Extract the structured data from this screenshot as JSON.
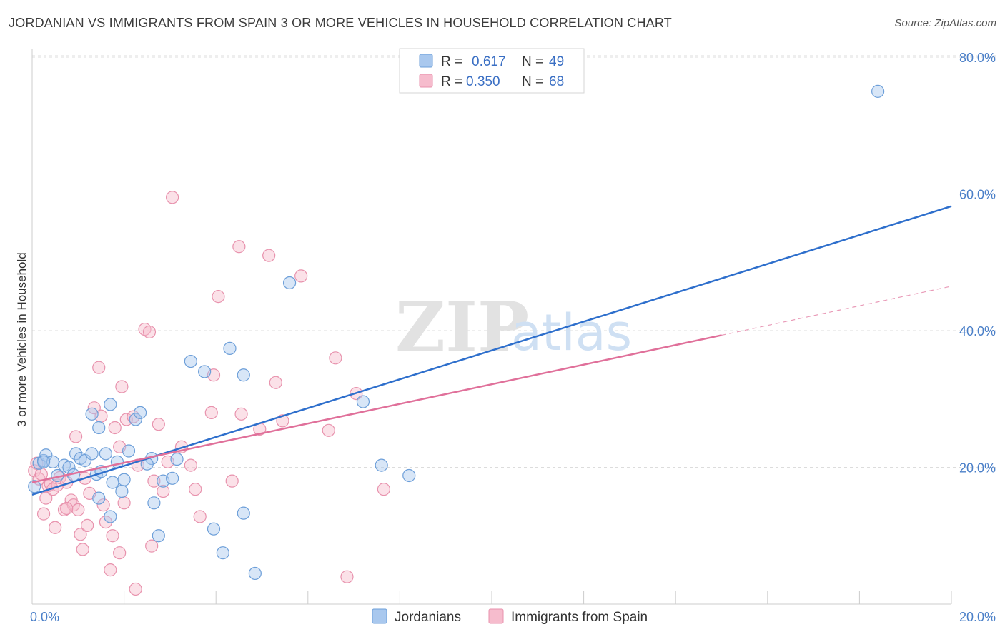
{
  "header": {
    "title": "JORDANIAN VS IMMIGRANTS FROM SPAIN 3 OR MORE VEHICLES IN HOUSEHOLD CORRELATION CHART",
    "source": "Source: ZipAtlas.com"
  },
  "watermark": {
    "zip": "ZIP",
    "atlas": "atlas"
  },
  "legend": {
    "series1": {
      "r_label": "R =",
      "r_value": "0.617",
      "n_label": "N =",
      "n_value": "49"
    },
    "series2": {
      "r_label": "R =",
      "r_value": "0.350",
      "n_label": "N =",
      "n_value": "68"
    }
  },
  "colors": {
    "blue_fill": "#a9c8ee",
    "blue_stroke": "#6d9fd9",
    "blue_line": "#2e6fcc",
    "pink_fill": "#f6bccd",
    "pink_stroke": "#e892ad",
    "pink_line": "#e0709a",
    "grid": "#dcdcdc",
    "tick_text": "#4a7fc8"
  },
  "chart_data": {
    "type": "scatter",
    "title": "JORDANIAN VS IMMIGRANTS FROM SPAIN 3 OR MORE VEHICLES IN HOUSEHOLD CORRELATION CHART",
    "xlabel": "",
    "ylabel": "3 or more Vehicles in Household",
    "xlim": [
      0,
      20
    ],
    "ylim": [
      0,
      80
    ],
    "x_tick_labels": [
      "0.0%",
      "20.0%"
    ],
    "y_ticks": [
      20,
      40,
      60,
      80
    ],
    "y_tick_labels": [
      "20.0%",
      "40.0%",
      "60.0%",
      "80.0%"
    ],
    "legend_position": "top-center",
    "grid": true,
    "series": [
      {
        "name": "Jordanians",
        "r": 0.617,
        "n": 49,
        "trend": {
          "x": [
            0,
            20
          ],
          "y": [
            16.0,
            58.2
          ],
          "dashed_from": null
        },
        "points": [
          [
            0.05,
            17.2
          ],
          [
            0.15,
            20.6
          ],
          [
            0.25,
            21.0
          ],
          [
            0.3,
            21.8
          ],
          [
            0.45,
            20.8
          ],
          [
            0.55,
            18.8
          ],
          [
            0.7,
            20.3
          ],
          [
            0.8,
            20.0
          ],
          [
            0.9,
            18.9
          ],
          [
            0.95,
            22.0
          ],
          [
            1.05,
            21.3
          ],
          [
            1.15,
            21.0
          ],
          [
            1.3,
            22.0
          ],
          [
            1.4,
            19.0
          ],
          [
            1.5,
            19.4
          ],
          [
            1.6,
            22.0
          ],
          [
            1.3,
            27.8
          ],
          [
            1.45,
            25.8
          ],
          [
            1.7,
            29.2
          ],
          [
            1.75,
            17.8
          ],
          [
            1.85,
            20.8
          ],
          [
            1.95,
            16.5
          ],
          [
            2.0,
            18.2
          ],
          [
            2.1,
            22.4
          ],
          [
            2.25,
            27.0
          ],
          [
            2.35,
            28.0
          ],
          [
            2.6,
            21.3
          ],
          [
            2.65,
            14.8
          ],
          [
            2.75,
            10.0
          ],
          [
            2.85,
            18.0
          ],
          [
            3.05,
            18.4
          ],
          [
            3.15,
            21.2
          ],
          [
            3.45,
            35.5
          ],
          [
            3.75,
            34.0
          ],
          [
            3.95,
            11.0
          ],
          [
            4.15,
            7.5
          ],
          [
            4.3,
            37.4
          ],
          [
            4.6,
            33.5
          ],
          [
            4.6,
            13.3
          ],
          [
            4.85,
            4.5
          ],
          [
            5.6,
            47.0
          ],
          [
            7.2,
            29.6
          ],
          [
            7.6,
            20.3
          ],
          [
            8.2,
            18.8
          ],
          [
            0.25,
            20.8
          ],
          [
            1.45,
            15.5
          ],
          [
            1.7,
            12.8
          ],
          [
            2.5,
            20.5
          ],
          [
            18.4,
            75.0
          ]
        ]
      },
      {
        "name": "Immigrants from Spain",
        "r": 0.35,
        "n": 68,
        "trend": {
          "x": [
            0,
            20
          ],
          "y": [
            17.8,
            46.5
          ],
          "dashed_from": 15
        },
        "points": [
          [
            0.05,
            19.5
          ],
          [
            0.1,
            20.6
          ],
          [
            0.15,
            18.3
          ],
          [
            0.2,
            19.0
          ],
          [
            0.25,
            13.2
          ],
          [
            0.3,
            15.5
          ],
          [
            0.35,
            17.3
          ],
          [
            0.4,
            17.6
          ],
          [
            0.45,
            16.8
          ],
          [
            0.5,
            11.2
          ],
          [
            0.55,
            17.4
          ],
          [
            0.6,
            18.5
          ],
          [
            0.7,
            13.8
          ],
          [
            0.75,
            17.8
          ],
          [
            0.85,
            15.2
          ],
          [
            0.9,
            14.5
          ],
          [
            0.95,
            24.5
          ],
          [
            1.0,
            13.8
          ],
          [
            1.05,
            10.2
          ],
          [
            1.1,
            8.0
          ],
          [
            1.15,
            18.4
          ],
          [
            1.2,
            11.5
          ],
          [
            1.25,
            16.2
          ],
          [
            1.35,
            28.7
          ],
          [
            1.45,
            34.6
          ],
          [
            1.5,
            27.5
          ],
          [
            1.55,
            14.5
          ],
          [
            1.6,
            12.0
          ],
          [
            1.7,
            5.0
          ],
          [
            1.75,
            10.0
          ],
          [
            1.8,
            25.8
          ],
          [
            1.9,
            23.0
          ],
          [
            1.95,
            31.8
          ],
          [
            2.0,
            14.8
          ],
          [
            2.05,
            27.0
          ],
          [
            2.2,
            27.4
          ],
          [
            2.3,
            20.3
          ],
          [
            2.45,
            40.2
          ],
          [
            2.55,
            39.8
          ],
          [
            2.65,
            18.0
          ],
          [
            2.75,
            26.3
          ],
          [
            2.85,
            16.5
          ],
          [
            2.95,
            20.8
          ],
          [
            3.05,
            59.5
          ],
          [
            3.25,
            23.0
          ],
          [
            3.45,
            20.3
          ],
          [
            3.55,
            16.8
          ],
          [
            3.65,
            12.8
          ],
          [
            3.9,
            28.0
          ],
          [
            3.95,
            33.5
          ],
          [
            4.05,
            45.0
          ],
          [
            4.35,
            18.0
          ],
          [
            4.5,
            52.3
          ],
          [
            4.55,
            27.8
          ],
          [
            4.95,
            25.6
          ],
          [
            5.15,
            51.0
          ],
          [
            5.3,
            32.4
          ],
          [
            5.45,
            26.8
          ],
          [
            5.85,
            48.0
          ],
          [
            6.45,
            25.4
          ],
          [
            6.6,
            36.0
          ],
          [
            6.85,
            4.0
          ],
          [
            7.05,
            30.8
          ],
          [
            7.65,
            16.8
          ],
          [
            2.25,
            2.2
          ],
          [
            1.9,
            7.5
          ],
          [
            0.75,
            14.0
          ],
          [
            2.6,
            8.5
          ]
        ]
      }
    ]
  }
}
